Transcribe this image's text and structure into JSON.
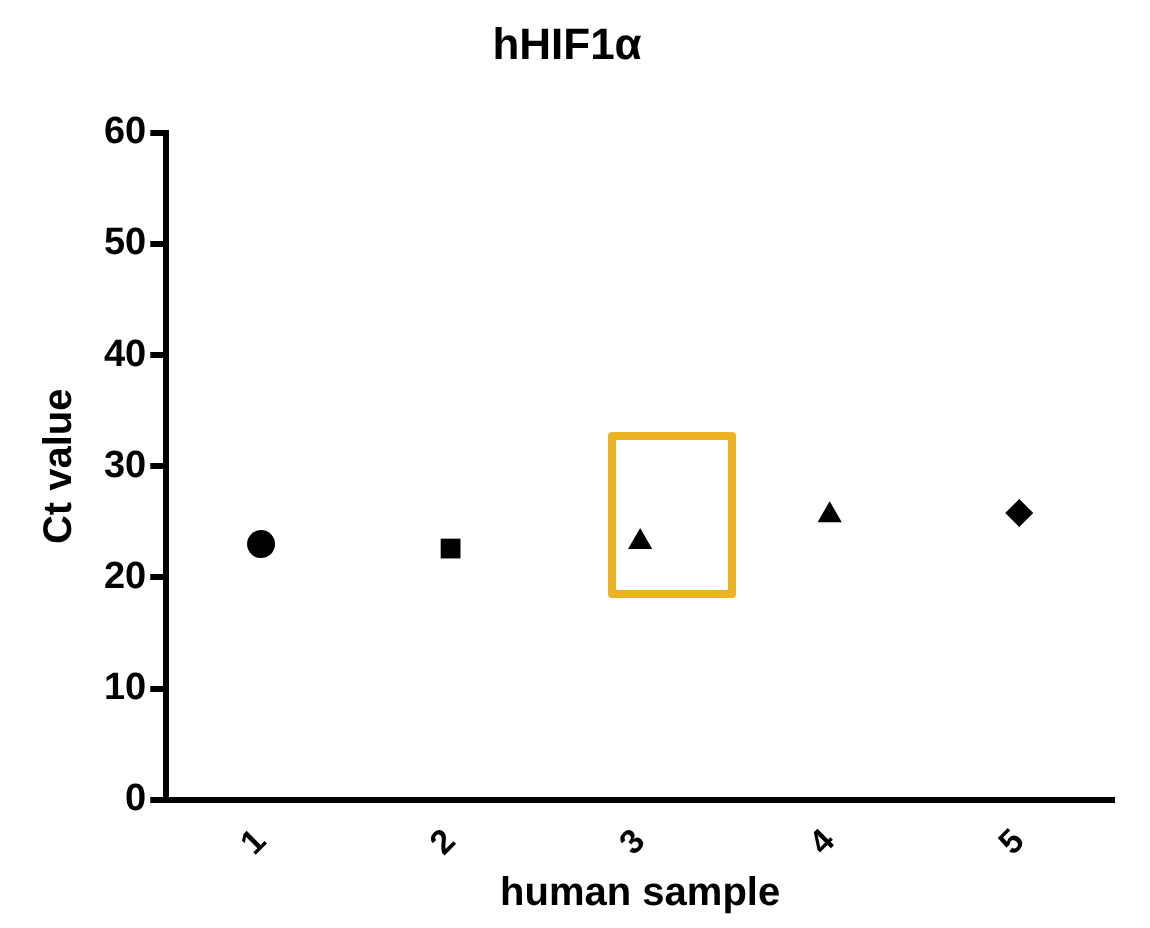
{
  "chart_data": {
    "type": "scatter",
    "title": "hHIF1α",
    "xlabel": "human sample",
    "ylabel": "Ct value",
    "categories": [
      "1",
      "2",
      "3",
      "4",
      "5"
    ],
    "series": [
      {
        "color": "#000000",
        "marker": "circle",
        "values": [
          23.0,
          null,
          null,
          null,
          null
        ]
      },
      {
        "color": "#000000",
        "marker": "square",
        "values": [
          null,
          22.6,
          null,
          null,
          null
        ]
      },
      {
        "color": "#000000",
        "marker": "triangle",
        "values": [
          null,
          null,
          23.2,
          null,
          null
        ]
      },
      {
        "color": "#000000",
        "marker": "triangle",
        "values": [
          null,
          null,
          null,
          25.6,
          null
        ]
      },
      {
        "color": "#000000",
        "marker": "diamond",
        "values": [
          null,
          null,
          null,
          null,
          25.8
        ]
      }
    ],
    "ylim": [
      0,
      60
    ],
    "yticks": [
      0,
      10,
      20,
      30,
      40,
      50,
      60
    ],
    "grid": false,
    "legend": false
  }
}
